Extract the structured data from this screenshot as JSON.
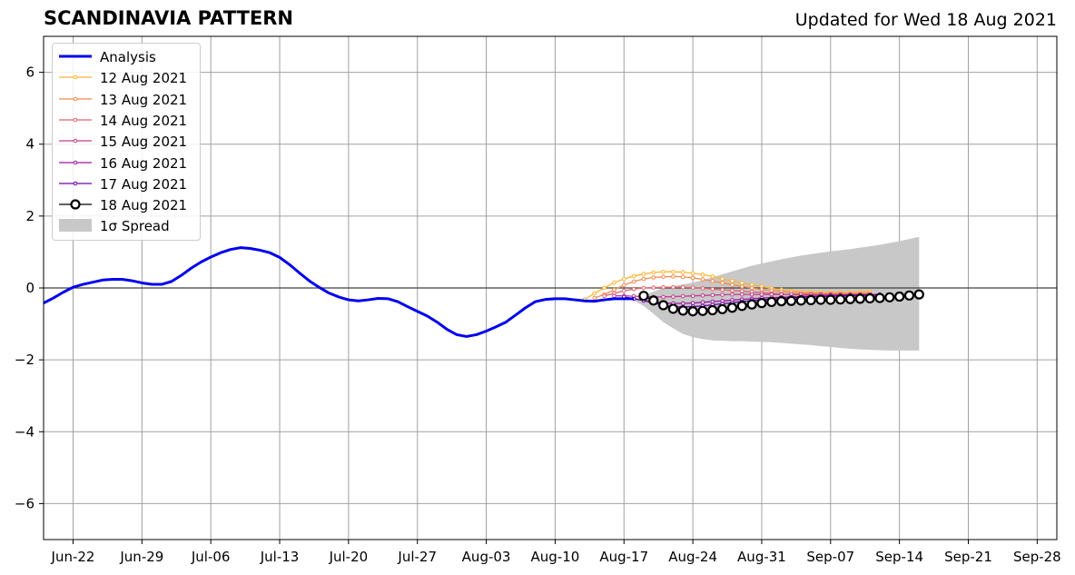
{
  "title": "SCANDINAVIA PATTERN",
  "subtitle": "Updated for Wed 18 Aug 2021",
  "colors": {
    "analysis": "#0000ee",
    "spread": "#c8c8c8",
    "grid": "#a0a0a0",
    "zero_line": "#404040",
    "forecast_18": "#000000"
  },
  "legend": {
    "items": [
      {
        "label": "Analysis",
        "color": "#0000ee",
        "style": "line-thick"
      },
      {
        "label": "12 Aug 2021",
        "color": "#fbb532",
        "style": "line-dot"
      },
      {
        "label": "13 Aug 2021",
        "color": "#f3894d",
        "style": "line-dot"
      },
      {
        "label": "14 Aug 2021",
        "color": "#e1646a",
        "style": "line-dot"
      },
      {
        "label": "15 Aug 2021",
        "color": "#c03c8a",
        "style": "line-dot"
      },
      {
        "label": "16 Aug 2021",
        "color": "#9b179e",
        "style": "line-dot"
      },
      {
        "label": "17 Aug 2021",
        "color": "#6a00a8",
        "style": "line-dot"
      },
      {
        "label": "18 Aug 2021",
        "color": "#000000",
        "style": "line-circle"
      },
      {
        "label": "1σ Spread",
        "color": "#c8c8c8",
        "style": "patch"
      }
    ]
  },
  "chart_data": {
    "type": "line",
    "title": "SCANDINAVIA PATTERN",
    "xlabel": "",
    "ylabel": "",
    "xlim": [
      "2021-06-19",
      "2021-09-30"
    ],
    "ylim": [
      -7,
      7
    ],
    "grid": true,
    "legend_position": "top-left",
    "x_ticks": [
      "Jun-22",
      "Jun-29",
      "Jul-06",
      "Jul-13",
      "Jul-20",
      "Jul-27",
      "Aug-03",
      "Aug-10",
      "Aug-17",
      "Aug-24",
      "Aug-31",
      "Sep-07",
      "Sep-14",
      "Sep-21",
      "Sep-28"
    ],
    "x_tick_dates": [
      "2021-06-22",
      "2021-06-29",
      "2021-07-06",
      "2021-07-13",
      "2021-07-20",
      "2021-07-27",
      "2021-08-03",
      "2021-08-10",
      "2021-08-17",
      "2021-08-24",
      "2021-08-31",
      "2021-09-07",
      "2021-09-14",
      "2021-09-21",
      "2021-09-28"
    ],
    "y_ticks": [
      6,
      4,
      2,
      0,
      -2,
      -4,
      -6
    ],
    "y_tick_labels": [
      "6",
      "4",
      "2",
      "0",
      "−2",
      "−4",
      "−6"
    ],
    "analysis": {
      "name": "Analysis",
      "x": [
        "2021-06-19",
        "2021-06-20",
        "2021-06-21",
        "2021-06-22",
        "2021-06-23",
        "2021-06-24",
        "2021-06-25",
        "2021-06-26",
        "2021-06-27",
        "2021-06-28",
        "2021-06-29",
        "2021-06-30",
        "2021-07-01",
        "2021-07-02",
        "2021-07-03",
        "2021-07-04",
        "2021-07-05",
        "2021-07-06",
        "2021-07-07",
        "2021-07-08",
        "2021-07-09",
        "2021-07-10",
        "2021-07-11",
        "2021-07-12",
        "2021-07-13",
        "2021-07-14",
        "2021-07-15",
        "2021-07-16",
        "2021-07-17",
        "2021-07-18",
        "2021-07-19",
        "2021-07-20",
        "2021-07-21",
        "2021-07-22",
        "2021-07-23",
        "2021-07-24",
        "2021-07-25",
        "2021-07-26",
        "2021-07-27",
        "2021-07-28",
        "2021-07-29",
        "2021-07-30",
        "2021-07-31",
        "2021-08-01",
        "2021-08-02",
        "2021-08-03",
        "2021-08-04",
        "2021-08-05",
        "2021-08-06",
        "2021-08-07",
        "2021-08-08",
        "2021-08-09",
        "2021-08-10",
        "2021-08-11",
        "2021-08-12",
        "2021-08-13",
        "2021-08-14",
        "2021-08-15",
        "2021-08-16",
        "2021-08-17",
        "2021-08-18"
      ],
      "y": [
        -0.42,
        -0.28,
        -0.12,
        0.02,
        0.1,
        0.16,
        0.22,
        0.24,
        0.24,
        0.2,
        0.14,
        0.1,
        0.1,
        0.18,
        0.35,
        0.55,
        0.72,
        0.86,
        0.98,
        1.07,
        1.12,
        1.1,
        1.05,
        0.98,
        0.85,
        0.65,
        0.42,
        0.2,
        0.02,
        -0.14,
        -0.25,
        -0.33,
        -0.36,
        -0.33,
        -0.29,
        -0.3,
        -0.38,
        -0.52,
        -0.65,
        -0.78,
        -0.95,
        -1.15,
        -1.3,
        -1.35,
        -1.3,
        -1.2,
        -1.08,
        -0.95,
        -0.75,
        -0.55,
        -0.38,
        -0.32,
        -0.3,
        -0.3,
        -0.33,
        -0.36,
        -0.37,
        -0.33,
        -0.3,
        -0.3,
        -0.3
      ]
    },
    "spread": {
      "name": "1σ Spread",
      "x": [
        "2021-08-18",
        "2021-08-19",
        "2021-08-20",
        "2021-08-21",
        "2021-08-22",
        "2021-08-23",
        "2021-08-24",
        "2021-08-25",
        "2021-08-26",
        "2021-08-27",
        "2021-08-28",
        "2021-08-29",
        "2021-08-30",
        "2021-08-31",
        "2021-09-01",
        "2021-09-02",
        "2021-09-03",
        "2021-09-04",
        "2021-09-05",
        "2021-09-06",
        "2021-09-07",
        "2021-09-08",
        "2021-09-09",
        "2021-09-10",
        "2021-09-11",
        "2021-09-12",
        "2021-09-13",
        "2021-09-14",
        "2021-09-15",
        "2021-09-16"
      ],
      "upper": [
        -0.3,
        -0.22,
        -0.1,
        0.0,
        0.05,
        0.1,
        0.15,
        0.22,
        0.3,
        0.38,
        0.46,
        0.54,
        0.62,
        0.68,
        0.74,
        0.8,
        0.85,
        0.9,
        0.94,
        0.98,
        1.02,
        1.05,
        1.08,
        1.12,
        1.16,
        1.2,
        1.25,
        1.3,
        1.36,
        1.42
      ],
      "lower": [
        -0.35,
        -0.5,
        -0.72,
        -0.95,
        -1.12,
        -1.28,
        -1.37,
        -1.42,
        -1.46,
        -1.47,
        -1.48,
        -1.48,
        -1.49,
        -1.5,
        -1.51,
        -1.53,
        -1.55,
        -1.57,
        -1.59,
        -1.62,
        -1.64,
        -1.67,
        -1.69,
        -1.71,
        -1.72,
        -1.73,
        -1.74,
        -1.74,
        -1.74,
        -1.74
      ]
    },
    "series": [
      {
        "name": "12 Aug 2021",
        "color": "#fbb532",
        "x": [
          "2021-08-13",
          "2021-08-14",
          "2021-08-15",
          "2021-08-16",
          "2021-08-17",
          "2021-08-18",
          "2021-08-19",
          "2021-08-20",
          "2021-08-21",
          "2021-08-22",
          "2021-08-23",
          "2021-08-24",
          "2021-08-25",
          "2021-08-26",
          "2021-08-27",
          "2021-08-28",
          "2021-08-29",
          "2021-08-30",
          "2021-08-31",
          "2021-09-01",
          "2021-09-02",
          "2021-09-03",
          "2021-09-04",
          "2021-09-05",
          "2021-09-06",
          "2021-09-07",
          "2021-09-08",
          "2021-09-09",
          "2021-09-10",
          "2021-09-11"
        ],
        "y": [
          -0.32,
          -0.15,
          0.0,
          0.15,
          0.25,
          0.33,
          0.39,
          0.43,
          0.45,
          0.45,
          0.44,
          0.41,
          0.37,
          0.32,
          0.25,
          0.19,
          0.14,
          0.09,
          0.04,
          -0.01,
          -0.05,
          -0.08,
          -0.1,
          -0.11,
          -0.12,
          -0.12,
          -0.12,
          -0.12,
          -0.11,
          -0.1
        ]
      },
      {
        "name": "13 Aug 2021",
        "color": "#f3894d",
        "x": [
          "2021-08-14",
          "2021-08-15",
          "2021-08-16",
          "2021-08-17",
          "2021-08-18",
          "2021-08-19",
          "2021-08-20",
          "2021-08-21",
          "2021-08-22",
          "2021-08-23",
          "2021-08-24",
          "2021-08-25",
          "2021-08-26",
          "2021-08-27",
          "2021-08-28",
          "2021-08-29",
          "2021-08-30",
          "2021-08-31",
          "2021-09-01",
          "2021-09-02",
          "2021-09-03",
          "2021-09-04",
          "2021-09-05",
          "2021-09-06",
          "2021-09-07",
          "2021-09-08",
          "2021-09-09",
          "2021-09-10",
          "2021-09-11"
        ],
        "y": [
          -0.28,
          -0.18,
          -0.05,
          0.08,
          0.18,
          0.25,
          0.29,
          0.31,
          0.32,
          0.31,
          0.28,
          0.24,
          0.19,
          0.14,
          0.09,
          0.04,
          0.0,
          -0.04,
          -0.07,
          -0.1,
          -0.12,
          -0.14,
          -0.15,
          -0.16,
          -0.16,
          -0.16,
          -0.16,
          -0.15,
          -0.14
        ]
      },
      {
        "name": "14 Aug 2021",
        "color": "#e1646a",
        "x": [
          "2021-08-15",
          "2021-08-16",
          "2021-08-17",
          "2021-08-18",
          "2021-08-19",
          "2021-08-20",
          "2021-08-21",
          "2021-08-22",
          "2021-08-23",
          "2021-08-24",
          "2021-08-25",
          "2021-08-26",
          "2021-08-27",
          "2021-08-28",
          "2021-08-29",
          "2021-08-30",
          "2021-08-31",
          "2021-09-01",
          "2021-09-02",
          "2021-09-03",
          "2021-09-04",
          "2021-09-05",
          "2021-09-06",
          "2021-09-07",
          "2021-09-08",
          "2021-09-09",
          "2021-09-10",
          "2021-09-11",
          "2021-09-12"
        ],
        "y": [
          -0.22,
          -0.15,
          -0.08,
          -0.03,
          0.0,
          0.01,
          0.02,
          0.02,
          0.02,
          0.01,
          -0.01,
          -0.03,
          -0.05,
          -0.07,
          -0.09,
          -0.11,
          -0.13,
          -0.15,
          -0.17,
          -0.19,
          -0.2,
          -0.21,
          -0.22,
          -0.22,
          -0.22,
          -0.22,
          -0.21,
          -0.2,
          -0.19
        ]
      },
      {
        "name": "15 Aug 2021",
        "color": "#c03c8a",
        "x": [
          "2021-08-16",
          "2021-08-17",
          "2021-08-18",
          "2021-08-19",
          "2021-08-20",
          "2021-08-21",
          "2021-08-22",
          "2021-08-23",
          "2021-08-24",
          "2021-08-25",
          "2021-08-26",
          "2021-08-27",
          "2021-08-28",
          "2021-08-29",
          "2021-08-30",
          "2021-08-31",
          "2021-09-01",
          "2021-09-02",
          "2021-09-03",
          "2021-09-04",
          "2021-09-05",
          "2021-09-06",
          "2021-09-07",
          "2021-09-08",
          "2021-09-09",
          "2021-09-10",
          "2021-09-11",
          "2021-09-12"
        ],
        "y": [
          -0.22,
          -0.22,
          -0.23,
          -0.24,
          -0.25,
          -0.25,
          -0.24,
          -0.23,
          -0.22,
          -0.21,
          -0.2,
          -0.19,
          -0.18,
          -0.18,
          -0.18,
          -0.18,
          -0.18,
          -0.18,
          -0.18,
          -0.18,
          -0.18,
          -0.18,
          -0.18,
          -0.18,
          -0.18,
          -0.18,
          -0.18,
          -0.18
        ]
      },
      {
        "name": "16 Aug 2021",
        "color": "#9b179e",
        "x": [
          "2021-08-17",
          "2021-08-18",
          "2021-08-19",
          "2021-08-20",
          "2021-08-21",
          "2021-08-22",
          "2021-08-23",
          "2021-08-24",
          "2021-08-25",
          "2021-08-26",
          "2021-08-27",
          "2021-08-28",
          "2021-08-29",
          "2021-08-30",
          "2021-08-31",
          "2021-09-01",
          "2021-09-02",
          "2021-09-03",
          "2021-09-04",
          "2021-09-05",
          "2021-09-06",
          "2021-09-07",
          "2021-09-08",
          "2021-09-09",
          "2021-09-10",
          "2021-09-11",
          "2021-09-12"
        ],
        "y": [
          -0.25,
          -0.3,
          -0.35,
          -0.39,
          -0.42,
          -0.43,
          -0.43,
          -0.42,
          -0.4,
          -0.38,
          -0.36,
          -0.34,
          -0.32,
          -0.3,
          -0.28,
          -0.27,
          -0.26,
          -0.25,
          -0.24,
          -0.23,
          -0.22,
          -0.21,
          -0.21,
          -0.2,
          -0.2,
          -0.19,
          -0.19
        ]
      },
      {
        "name": "17 Aug 2021",
        "color": "#6a00a8",
        "x": [
          "2021-08-18",
          "2021-08-19",
          "2021-08-20",
          "2021-08-21",
          "2021-08-22",
          "2021-08-23",
          "2021-08-24",
          "2021-08-25",
          "2021-08-26",
          "2021-08-27",
          "2021-08-28",
          "2021-08-29",
          "2021-08-30",
          "2021-08-31",
          "2021-09-01",
          "2021-09-02",
          "2021-09-03",
          "2021-09-04",
          "2021-09-05",
          "2021-09-06",
          "2021-09-07",
          "2021-09-08",
          "2021-09-09",
          "2021-09-10",
          "2021-09-11",
          "2021-09-12"
        ],
        "y": [
          -0.3,
          -0.35,
          -0.42,
          -0.48,
          -0.52,
          -0.53,
          -0.52,
          -0.5,
          -0.47,
          -0.44,
          -0.41,
          -0.38,
          -0.35,
          -0.33,
          -0.31,
          -0.29,
          -0.27,
          -0.26,
          -0.25,
          -0.24,
          -0.23,
          -0.22,
          -0.21,
          -0.2,
          -0.2,
          -0.19
        ]
      },
      {
        "name": "18 Aug 2021",
        "color": "#000000",
        "x": [
          "2021-08-19",
          "2021-08-20",
          "2021-08-21",
          "2021-08-22",
          "2021-08-23",
          "2021-08-24",
          "2021-08-25",
          "2021-08-26",
          "2021-08-27",
          "2021-08-28",
          "2021-08-29",
          "2021-08-30",
          "2021-08-31",
          "2021-09-01",
          "2021-09-02",
          "2021-09-03",
          "2021-09-04",
          "2021-09-05",
          "2021-09-06",
          "2021-09-07",
          "2021-09-08",
          "2021-09-09",
          "2021-09-10",
          "2021-09-11",
          "2021-09-12",
          "2021-09-13",
          "2021-09-14",
          "2021-09-15",
          "2021-09-16"
        ],
        "y": [
          -0.22,
          -0.35,
          -0.48,
          -0.58,
          -0.63,
          -0.65,
          -0.64,
          -0.62,
          -0.59,
          -0.55,
          -0.5,
          -0.46,
          -0.42,
          -0.39,
          -0.37,
          -0.36,
          -0.35,
          -0.34,
          -0.33,
          -0.33,
          -0.32,
          -0.31,
          -0.3,
          -0.29,
          -0.28,
          -0.26,
          -0.24,
          -0.21,
          -0.18
        ]
      }
    ]
  }
}
